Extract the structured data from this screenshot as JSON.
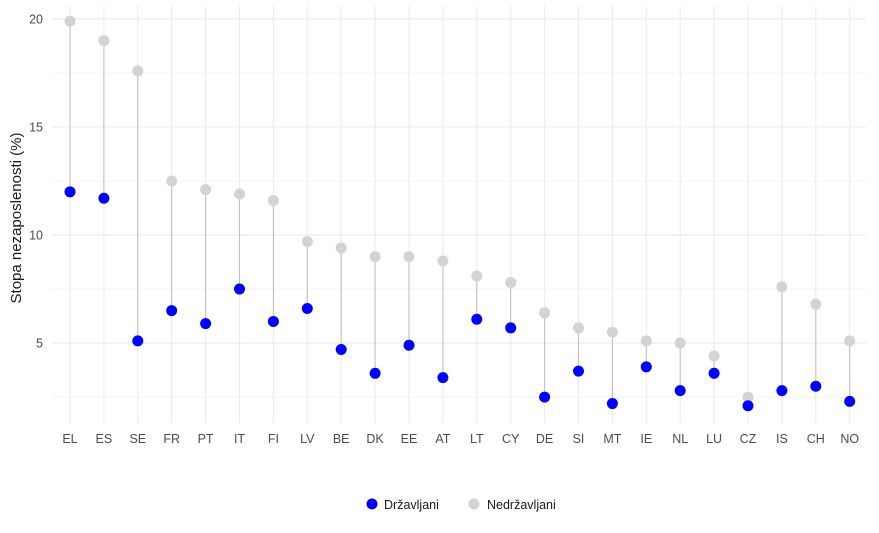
{
  "chart_data": {
    "type": "scatter",
    "subtype": "dumbbell",
    "title": "",
    "xlabel": "",
    "ylabel": "Stopa nezaposlenosti (%)",
    "ylim": [
      1.3,
      20.6
    ],
    "yticks": [
      5,
      10,
      15,
      20
    ],
    "grid": true,
    "legend_position": "bottom",
    "categories": [
      "EL",
      "ES",
      "SE",
      "FR",
      "PT",
      "IT",
      "FI",
      "LV",
      "BE",
      "DK",
      "EE",
      "AT",
      "LT",
      "CY",
      "DE",
      "SI",
      "MT",
      "IE",
      "NL",
      "LU",
      "CZ",
      "IS",
      "CH",
      "NO"
    ],
    "series": [
      {
        "name": "Državljani",
        "color": "#0000ff",
        "values": [
          12.0,
          11.7,
          5.1,
          6.5,
          5.9,
          7.5,
          6.0,
          6.6,
          4.7,
          3.6,
          4.9,
          3.4,
          6.1,
          5.7,
          2.5,
          3.7,
          2.2,
          3.9,
          2.8,
          3.6,
          2.1,
          2.8,
          3.0,
          2.3
        ]
      },
      {
        "name": "Nedržavljani",
        "color": "#d3d3d3",
        "values": [
          19.9,
          19.0,
          17.6,
          12.5,
          12.1,
          11.9,
          11.6,
          9.7,
          9.4,
          9.0,
          9.0,
          8.8,
          8.1,
          7.8,
          6.4,
          5.7,
          5.5,
          5.1,
          5.0,
          4.4,
          2.5,
          7.6,
          6.8,
          5.1
        ]
      }
    ],
    "connector_color": "#bebebe"
  }
}
